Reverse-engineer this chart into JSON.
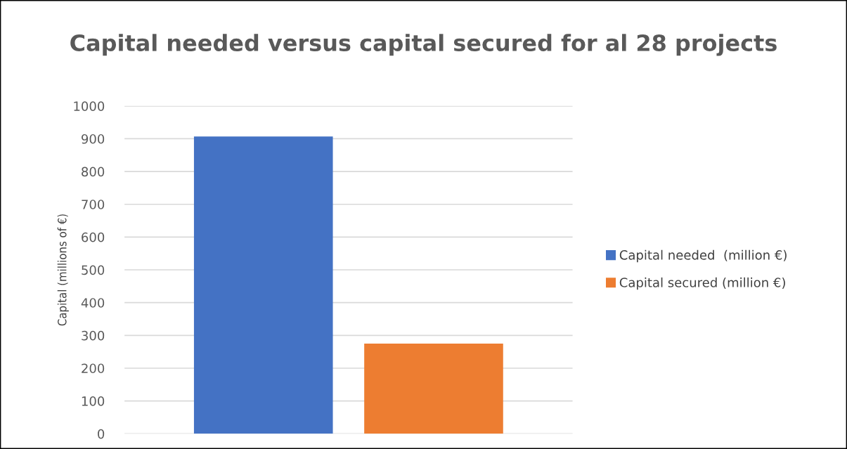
{
  "chart_data": {
    "type": "bar",
    "title": "Capital needed versus capital secured for al 28 projects",
    "ylabel": "Capital (millions of €)",
    "categories": [
      null
    ],
    "series": [
      {
        "name": "Capital needed  (million €)",
        "color": "#4472c4",
        "values": [
          907
        ]
      },
      {
        "name": "Capital secured (million €)",
        "color": "#ed7d31",
        "values": [
          275
        ]
      }
    ],
    "ylim": [
      0,
      1000
    ],
    "yticks": [
      0,
      100,
      200,
      300,
      400,
      500,
      600,
      700,
      800,
      900,
      1000
    ],
    "grid": "y",
    "legend": "right"
  }
}
